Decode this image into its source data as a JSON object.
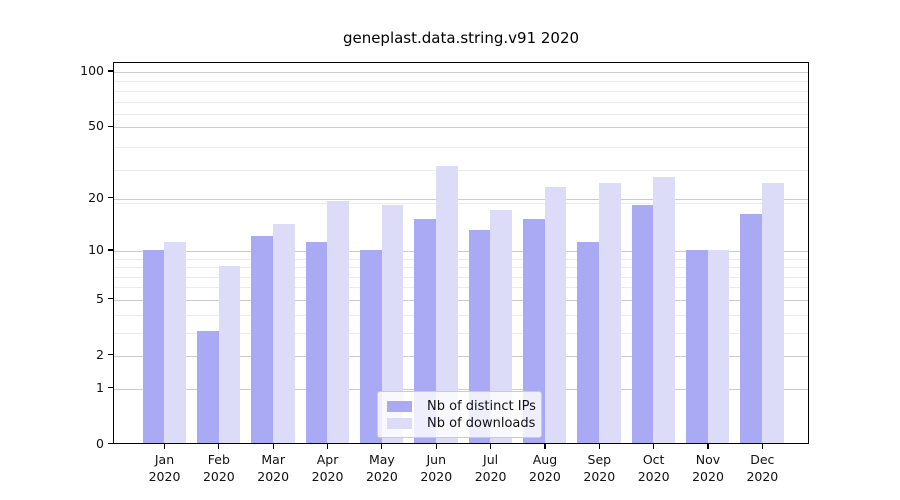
{
  "chart_data": {
    "type": "bar",
    "title": "geneplast.data.string.v91 2020",
    "categories": [
      "Jan 2020",
      "Feb 2020",
      "Mar 2020",
      "Apr 2020",
      "May 2020",
      "Jun 2020",
      "Jul 2020",
      "Aug 2020",
      "Sep 2020",
      "Oct 2020",
      "Nov 2020",
      "Dec 2020"
    ],
    "series": [
      {
        "name": "Nb of distinct IPs",
        "color": "#a9a9f4",
        "values": [
          10,
          3,
          12,
          11,
          10,
          15,
          13,
          15,
          11,
          18,
          10,
          16
        ]
      },
      {
        "name": "Nb of downloads",
        "color": "#dcdcf9",
        "values": [
          11,
          8,
          14,
          19,
          18,
          30,
          17,
          23,
          24,
          26,
          10,
          24
        ]
      }
    ],
    "xlabel": "",
    "ylabel": "",
    "yscale": "log1p",
    "yticks": [
      0,
      1,
      2,
      5,
      10,
      20,
      50,
      100
    ],
    "ylim": [
      0,
      112
    ],
    "grid": "on",
    "legend_position": "lower center",
    "colors": {
      "background": "#ffffff",
      "major_grid": "#cccccc",
      "minor_grid": "#ebebeb",
      "axis": "#000000",
      "text": "#111111"
    }
  }
}
